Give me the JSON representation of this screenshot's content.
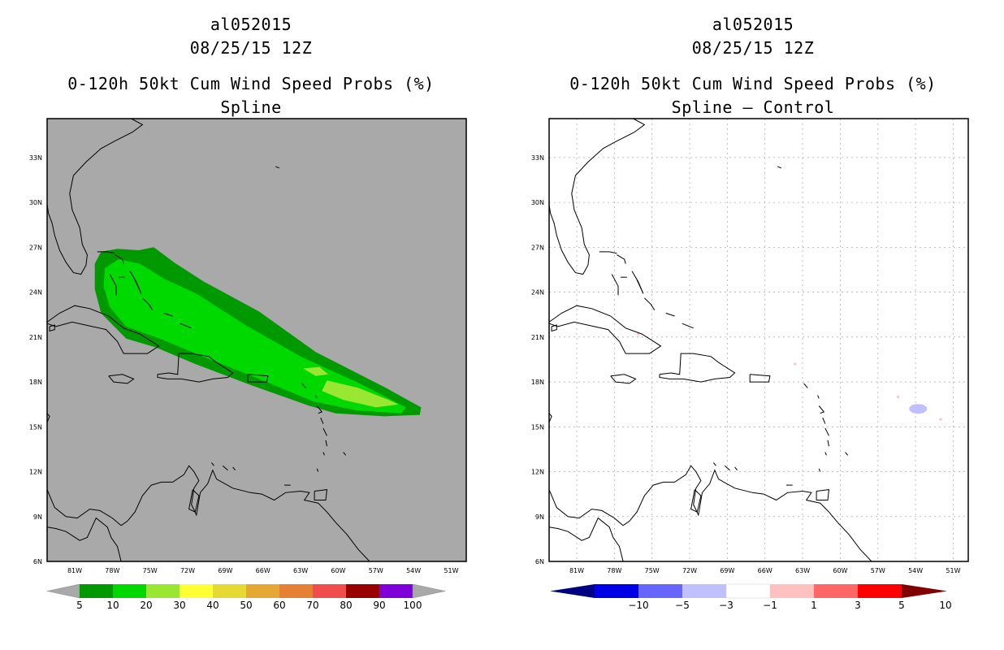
{
  "panels": [
    {
      "storm_id": "al052015",
      "datetime": "08/25/15 12Z",
      "product": "0-120h 50kt Cum Wind Speed Probs (%)",
      "subtitle": "Spline",
      "background": "#a9a9a9",
      "grid": false,
      "colorbar_labels": [
        "5",
        "10",
        "20",
        "30",
        "40",
        "50",
        "60",
        "70",
        "80",
        "90",
        "100"
      ],
      "colorbar_colors": [
        "#009900",
        "#00d900",
        "#99e633",
        "#ffff33",
        "#e6d933",
        "#e6a833",
        "#e68033",
        "#f24d4d",
        "#990000",
        "#8000d9"
      ]
    },
    {
      "storm_id": "al052015",
      "datetime": "08/25/15 12Z",
      "product": "0-120h 50kt Cum Wind Speed Probs (%)",
      "subtitle": "Spline – Control",
      "background": "#ffffff",
      "grid": true,
      "colorbar_labels": [
        "−10",
        "−5",
        "−3",
        "−1",
        "1",
        "3",
        "5",
        "10"
      ],
      "colorbar_colors": [
        "#0000e6",
        "#6666ff",
        "#c0c0ff",
        "#ffffff",
        "#ffc0c0",
        "#ff6666",
        "#ff0000"
      ],
      "colorbar_end_colors": [
        "#000080",
        "#800000"
      ]
    }
  ],
  "map": {
    "lon_labels": [
      "81W",
      "78W",
      "75W",
      "72W",
      "69W",
      "66W",
      "63W",
      "60W",
      "57W",
      "54W",
      "51W"
    ],
    "lat_labels": [
      "33N",
      "30N",
      "27N",
      "24N",
      "21N",
      "18N",
      "15N",
      "12N",
      "9N",
      "6N"
    ]
  },
  "probability_contours": [
    {
      "level": "5-10%",
      "color": "#009900"
    },
    {
      "level": "10-20%",
      "color": "#00d900"
    },
    {
      "level": "20-30%",
      "color": "#99e633"
    }
  ]
}
